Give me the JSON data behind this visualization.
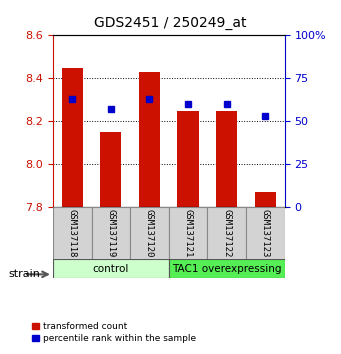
{
  "title": "GDS2451 / 250249_at",
  "samples": [
    "GSM137118",
    "GSM137119",
    "GSM137120",
    "GSM137121",
    "GSM137122",
    "GSM137123"
  ],
  "bar_values": [
    8.45,
    8.15,
    8.43,
    8.25,
    8.25,
    7.87
  ],
  "percentile_values": [
    63,
    57,
    63,
    60,
    60,
    53
  ],
  "bar_bottom": 7.8,
  "ylim_left": [
    7.8,
    8.6
  ],
  "ylim_right": [
    0,
    100
  ],
  "yticks_left": [
    7.8,
    8.0,
    8.2,
    8.4,
    8.6
  ],
  "yticks_right": [
    0,
    25,
    50,
    75,
    100
  ],
  "bar_color": "#cc1100",
  "percentile_color": "#0000cc",
  "bar_width": 0.55,
  "control_color": "#ccffcc",
  "tac1_color": "#55ee55",
  "xlabel": "strain",
  "tick_label_color_left": "#cc1100",
  "tick_label_color_right": "#0000cc",
  "legend_red_label": "transformed count",
  "legend_blue_label": "percentile rank within the sample"
}
